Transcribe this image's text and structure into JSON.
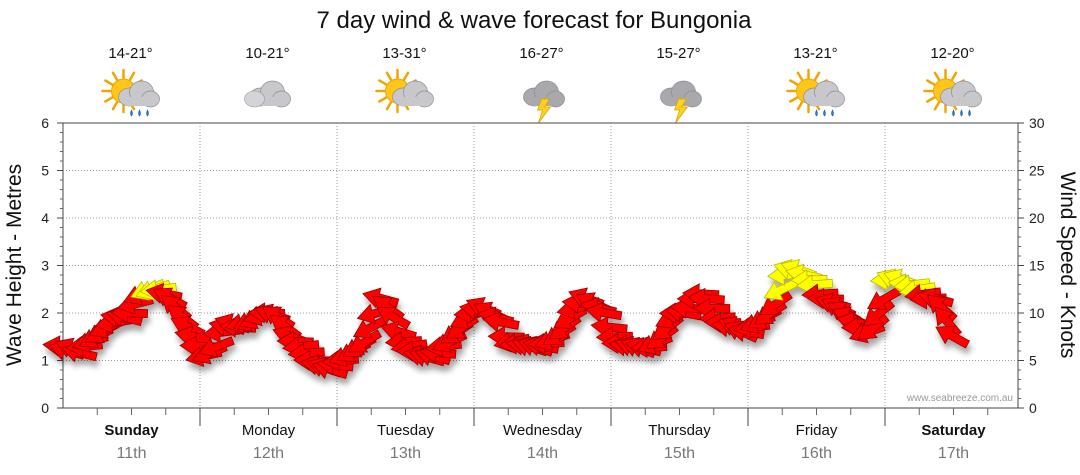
{
  "chart_data": {
    "type": "line",
    "title": "7 day wind & wave forecast for Bungonia",
    "ylabel_left": "Wave Height - Metres",
    "ylabel_right": "Wind Speed - Knots",
    "ylim_left": [
      0,
      6
    ],
    "ylim_right": [
      0,
      30
    ],
    "yticks_left": [
      "0",
      "1",
      "2",
      "3",
      "4",
      "5",
      "6"
    ],
    "yticks_right": [
      "0",
      "5",
      "10",
      "15",
      "20",
      "25",
      "30"
    ],
    "days": [
      {
        "day": "Sunday",
        "date": "11th",
        "temp": "14-21°",
        "icon": "sun-rain-cloud-icon",
        "bold": true
      },
      {
        "day": "Monday",
        "date": "12th",
        "temp": "10-21°",
        "icon": "cloud-icon",
        "bold": false
      },
      {
        "day": "Tuesday",
        "date": "13th",
        "temp": "13-31°",
        "icon": "sun-cloud-icon",
        "bold": false
      },
      {
        "day": "Wednesday",
        "date": "14th",
        "temp": "16-27°",
        "icon": "storm-icon",
        "bold": false
      },
      {
        "day": "Thursday",
        "date": "15th",
        "temp": "15-27°",
        "icon": "storm-icon",
        "bold": false
      },
      {
        "day": "Friday",
        "date": "16th",
        "temp": "13-21°",
        "icon": "sun-rain-cloud-icon",
        "bold": false
      },
      {
        "day": "Saturday",
        "date": "17th",
        "temp": "12-20°",
        "icon": "sun-rain-cloud-icon",
        "bold": true
      }
    ],
    "wind_series": {
      "name": "Wind Speed",
      "x_days": [
        0.0,
        0.04,
        0.08,
        0.13,
        0.17,
        0.21,
        0.25,
        0.29,
        0.33,
        0.38,
        0.42,
        0.46,
        0.5,
        0.54,
        0.58,
        0.63,
        0.67,
        0.71,
        0.75,
        0.79,
        0.83,
        0.88,
        0.92,
        0.96,
        1.0,
        1.04,
        1.08,
        1.13,
        1.17,
        1.21,
        1.25,
        1.29,
        1.33,
        1.38,
        1.42,
        1.46,
        1.5,
        1.54,
        1.58,
        1.63,
        1.67,
        1.71,
        1.75,
        1.79,
        1.83,
        1.88,
        1.92,
        1.96,
        2.0,
        2.04,
        2.08,
        2.13,
        2.17,
        2.21,
        2.25,
        2.29,
        2.33,
        2.38,
        2.42,
        2.46,
        2.5,
        2.54,
        2.58,
        2.63,
        2.67,
        2.71,
        2.75,
        2.79,
        2.83,
        2.88,
        2.92,
        2.96,
        3.0,
        3.04,
        3.08,
        3.13,
        3.17,
        3.21,
        3.25,
        3.29,
        3.33,
        3.38,
        3.42,
        3.46,
        3.5,
        3.54,
        3.58,
        3.63,
        3.67,
        3.71,
        3.75,
        3.79,
        3.83,
        3.88,
        3.92,
        3.96,
        4.0,
        4.04,
        4.08,
        4.13,
        4.17,
        4.21,
        4.25,
        4.29,
        4.33,
        4.38,
        4.42,
        4.46,
        4.5,
        4.54,
        4.58,
        4.63,
        4.67,
        4.71,
        4.75,
        4.79,
        4.83,
        4.88,
        4.92,
        4.96,
        5.0,
        5.04,
        5.08,
        5.13,
        5.17,
        5.21,
        5.25,
        5.29,
        5.33,
        5.38,
        5.42,
        5.46,
        5.5,
        5.54,
        5.58,
        5.63,
        5.67,
        5.71,
        5.75,
        5.79,
        5.83,
        5.88,
        5.92,
        5.96,
        6.0,
        6.04,
        6.08,
        6.13,
        6.17,
        6.21,
        6.25,
        6.29,
        6.33,
        6.38,
        6.42,
        6.46,
        6.5,
        6.54,
        6.58,
        6.63,
        6.67
      ],
      "knots": [
        6.5,
        6.0,
        6.2,
        5.8,
        6.5,
        7.0,
        7.5,
        8.0,
        8.5,
        9.0,
        9.5,
        9.5,
        10.0,
        11.0,
        12.0,
        12.5,
        12.5,
        12.5,
        12.0,
        11.5,
        10.5,
        9.5,
        8.5,
        7.5,
        6.5,
        5.5,
        5.8,
        6.5,
        8.0,
        8.5,
        8.8,
        8.5,
        9.0,
        9.2,
        9.5,
        9.8,
        10.0,
        9.8,
        9.5,
        8.5,
        7.5,
        7.0,
        6.5,
        5.8,
        5.0,
        4.5,
        4.2,
        4.0,
        4.5,
        5.0,
        5.5,
        6.0,
        6.5,
        7.0,
        8.5,
        10.0,
        11.5,
        10.5,
        9.5,
        8.0,
        7.0,
        6.5,
        6.0,
        5.5,
        5.3,
        5.4,
        5.8,
        6.5,
        7.0,
        8.0,
        8.5,
        9.5,
        10.0,
        10.3,
        10.5,
        10.0,
        9.5,
        9.0,
        7.5,
        7.0,
        6.8,
        6.6,
        6.4,
        6.4,
        6.5,
        6.8,
        7.2,
        7.8,
        8.5,
        9.5,
        10.5,
        11.0,
        11.5,
        11.0,
        10.5,
        10.0,
        8.5,
        7.5,
        6.8,
        6.5,
        6.4,
        6.3,
        6.3,
        6.4,
        6.8,
        7.5,
        8.5,
        9.5,
        10.0,
        10.0,
        10.5,
        11.5,
        12.0,
        11.5,
        10.5,
        9.5,
        9.0,
        8.5,
        8.5,
        8.0,
        8.0,
        8.5,
        9.0,
        9.5,
        10.0,
        11.0,
        12.5,
        14.0,
        14.5,
        14.5,
        14.0,
        13.5,
        13.0,
        12.0,
        11.5,
        11.0,
        10.5,
        10.0,
        9.5,
        9.0,
        8.5,
        8.0,
        8.5,
        10.0,
        11.5,
        13.5,
        13.5,
        13.5,
        13.0,
        13.0,
        12.5,
        12.0,
        11.5,
        11.5,
        10.5,
        9.0,
        7.5
      ]
    },
    "credit": "www.seabreeze.com.au"
  }
}
